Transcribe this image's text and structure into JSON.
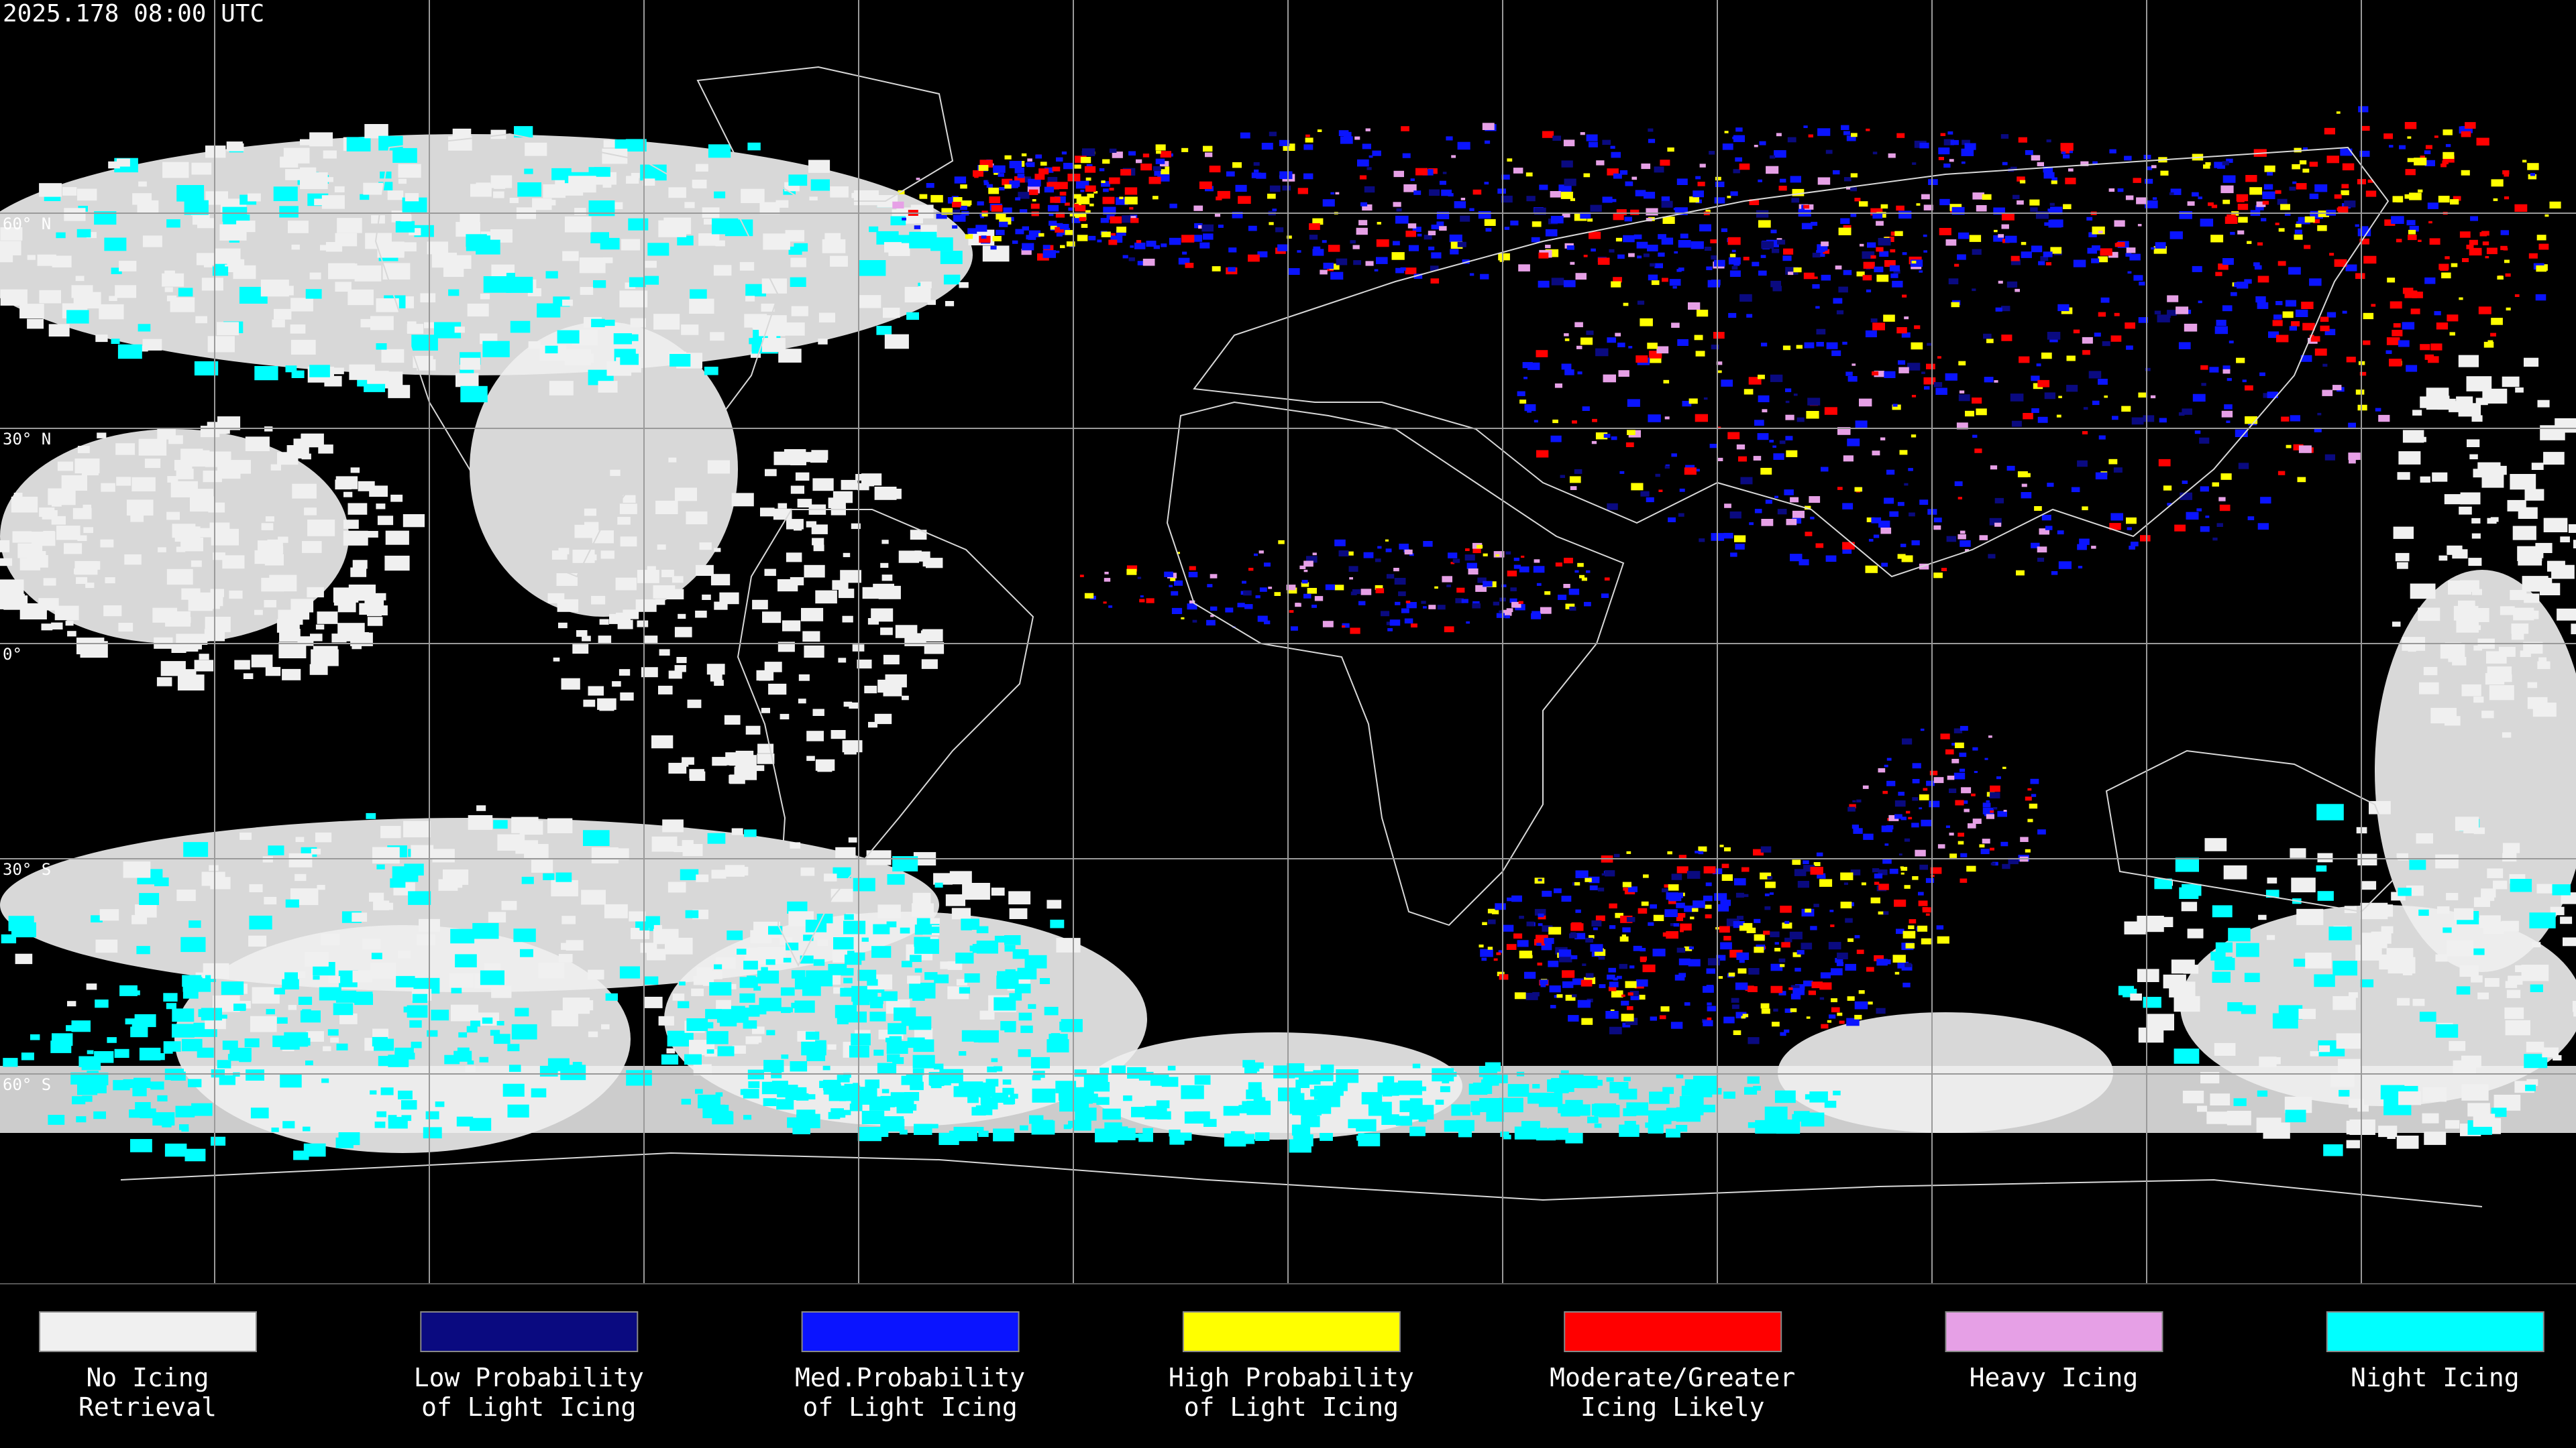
{
  "header": {
    "timestamp": "2025.178 08:00 UTC"
  },
  "map": {
    "latitude_labels": [
      "60° N",
      "30° N",
      "0°",
      "30° S",
      "60° S"
    ]
  },
  "legend": {
    "items": [
      {
        "label_lines": [
          "No Icing",
          "Retrieval"
        ],
        "color": "#f0f0f0"
      },
      {
        "label_lines": [
          "Low Probability",
          "of Light Icing"
        ],
        "color": "#0a0a80"
      },
      {
        "label_lines": [
          "Med.Probability",
          "of Light Icing"
        ],
        "color": "#0a14ff"
      },
      {
        "label_lines": [
          "High Probability",
          "of Light Icing"
        ],
        "color": "#ffff00"
      },
      {
        "label_lines": [
          "Moderate/Greater",
          "Icing Likely"
        ],
        "color": "#ff0000"
      },
      {
        "label_lines": [
          "Heavy Icing"
        ],
        "color": "#e6a0e6"
      },
      {
        "label_lines": [
          "Night Icing"
        ],
        "color": "#00ffff"
      }
    ]
  }
}
